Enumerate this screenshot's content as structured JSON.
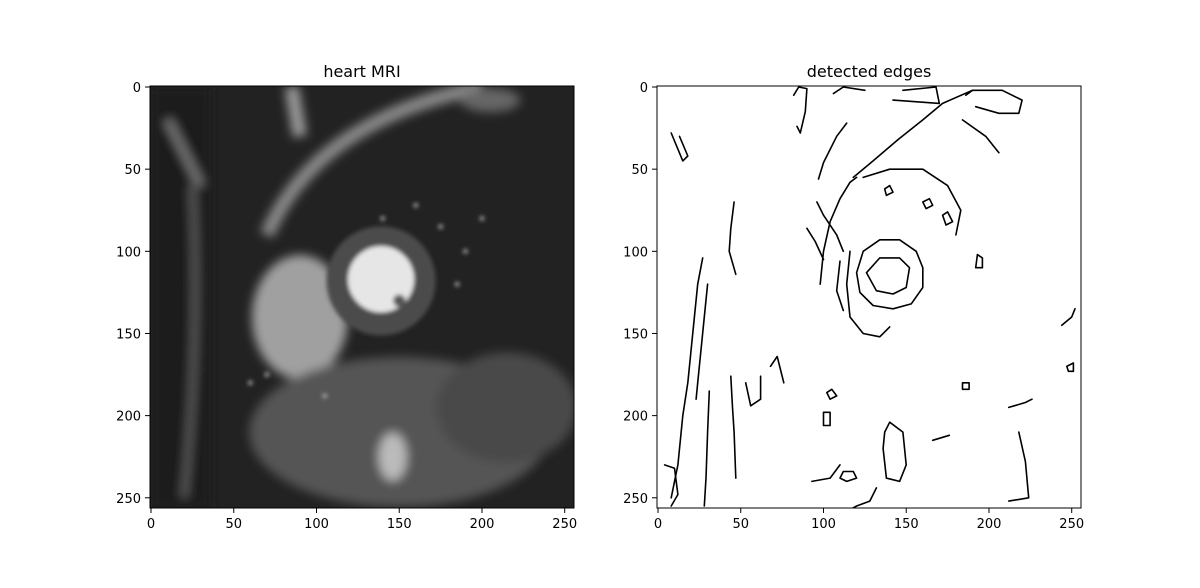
{
  "chart_data": [
    {
      "type": "image",
      "title": "heart MRI",
      "colormap": "gray",
      "width": 256,
      "height": 256,
      "xlim": [
        0,
        255
      ],
      "ylim": [
        255,
        0
      ],
      "x_ticks": [
        0,
        50,
        100,
        150,
        200,
        250
      ],
      "y_ticks": [
        0,
        50,
        100,
        150,
        200,
        250
      ],
      "x_tick_labels": [
        "0",
        "50",
        "100",
        "150",
        "200",
        "250"
      ],
      "y_tick_labels": [
        "0",
        "50",
        "100",
        "150",
        "200",
        "250"
      ],
      "features": {
        "left_ventricle_blood_pool": {
          "cx": 139,
          "cy": 117,
          "r": 20
        },
        "myocardium_ring": {
          "cx": 139,
          "cy": 118,
          "r": 33
        },
        "right_ventricle": {
          "cx": 90,
          "cy": 140
        }
      }
    },
    {
      "type": "image",
      "title": "detected edges",
      "colormap": "binary",
      "width": 256,
      "height": 256,
      "xlim": [
        0,
        255
      ],
      "ylim": [
        255,
        0
      ],
      "x_ticks": [
        0,
        50,
        100,
        150,
        200,
        250
      ],
      "y_ticks": [
        0,
        50,
        100,
        150,
        200,
        250
      ],
      "x_tick_labels": [
        "0",
        "50",
        "100",
        "150",
        "200",
        "250"
      ],
      "y_tick_labels": [
        "0",
        "50",
        "100",
        "150",
        "200",
        "250"
      ],
      "edge_contours": [
        [
          [
            82,
            5
          ],
          [
            85,
            0
          ],
          [
            90,
            1
          ],
          [
            89,
            15
          ],
          [
            86,
            28
          ],
          [
            84,
            24
          ]
        ],
        [
          [
            8,
            28
          ],
          [
            15,
            45
          ],
          [
            18,
            42
          ],
          [
            13,
            30
          ]
        ],
        [
          [
            118,
            55
          ],
          [
            130,
            45
          ],
          [
            145,
            32
          ],
          [
            160,
            20
          ],
          [
            172,
            10
          ],
          [
            190,
            2
          ]
        ],
        [
          [
            142,
            8
          ],
          [
            170,
            10
          ],
          [
            168,
            0
          ],
          [
            148,
            2
          ]
        ],
        [
          [
            186,
            5
          ],
          [
            190,
            2
          ],
          [
            208,
            2
          ],
          [
            220,
            8
          ],
          [
            218,
            16
          ],
          [
            206,
            16
          ],
          [
            192,
            12
          ]
        ],
        [
          [
            184,
            20
          ],
          [
            198,
            30
          ],
          [
            206,
            40
          ]
        ],
        [
          [
            106,
            4
          ],
          [
            112,
            0
          ],
          [
            125,
            2
          ]
        ],
        [
          [
            97,
            56
          ],
          [
            100,
            46
          ],
          [
            108,
            30
          ],
          [
            114,
            22
          ]
        ],
        [
          [
            124,
            55
          ],
          [
            140,
            50
          ],
          [
            160,
            50
          ],
          [
            175,
            60
          ],
          [
            183,
            75
          ],
          [
            180,
            90
          ]
        ],
        [
          [
            96,
            70
          ],
          [
            100,
            78
          ],
          [
            108,
            90
          ],
          [
            112,
            100
          ]
        ],
        [
          [
            120,
            55
          ],
          [
            116,
            58
          ],
          [
            110,
            68
          ],
          [
            104,
            82
          ],
          [
            100,
            100
          ],
          [
            98,
            120
          ]
        ],
        [
          [
            116,
            100
          ],
          [
            114,
            120
          ],
          [
            116,
            140
          ],
          [
            124,
            150
          ],
          [
            134,
            152
          ],
          [
            140,
            146
          ]
        ],
        [
          [
            110,
            106
          ],
          [
            108,
            124
          ],
          [
            112,
            136
          ]
        ],
        [
          [
            90,
            86
          ],
          [
            95,
            94
          ],
          [
            100,
            105
          ]
        ],
        [
          [
            120,
            113
          ],
          [
            124,
            100
          ],
          [
            134,
            93
          ],
          [
            146,
            93
          ],
          [
            156,
            100
          ],
          [
            160,
            110
          ],
          [
            160,
            122
          ],
          [
            153,
            132
          ],
          [
            142,
            135
          ],
          [
            130,
            133
          ],
          [
            122,
            125
          ],
          [
            120,
            113
          ]
        ],
        [
          [
            126,
            113
          ],
          [
            134,
            104
          ],
          [
            146,
            104
          ],
          [
            152,
            110
          ],
          [
            150,
            122
          ],
          [
            142,
            126
          ],
          [
            132,
            124
          ],
          [
            126,
            113
          ]
        ],
        [
          [
            46,
            70
          ],
          [
            44,
            86
          ],
          [
            43,
            100
          ],
          [
            47,
            114
          ]
        ],
        [
          [
            27,
            104
          ],
          [
            24,
            120
          ],
          [
            22,
            140
          ],
          [
            20,
            160
          ],
          [
            18,
            180
          ],
          [
            15,
            200
          ],
          [
            12,
            230
          ],
          [
            8,
            250
          ]
        ],
        [
          [
            30,
            120
          ],
          [
            28,
            140
          ],
          [
            26,
            160
          ],
          [
            24,
            180
          ],
          [
            23,
            190
          ]
        ],
        [
          [
            4,
            230
          ],
          [
            10,
            232
          ],
          [
            12,
            248
          ],
          [
            8,
            255
          ]
        ],
        [
          [
            44,
            176
          ],
          [
            45,
            195
          ],
          [
            46,
            210
          ],
          [
            47,
            238
          ]
        ],
        [
          [
            31,
            185
          ],
          [
            30,
            210
          ],
          [
            29,
            238
          ],
          [
            28,
            255
          ]
        ],
        [
          [
            53,
            180
          ],
          [
            56,
            194
          ],
          [
            62,
            190
          ],
          [
            62,
            176
          ]
        ],
        [
          [
            68,
            170
          ],
          [
            72,
            164
          ],
          [
            76,
            180
          ]
        ],
        [
          [
            110,
            238
          ],
          [
            112,
            234
          ],
          [
            118,
            234
          ],
          [
            120,
            238
          ],
          [
            114,
            240
          ],
          [
            110,
            238
          ]
        ],
        [
          [
            93,
            240
          ],
          [
            104,
            238
          ],
          [
            110,
            230
          ]
        ],
        [
          [
            137,
            210
          ],
          [
            140,
            204
          ],
          [
            148,
            210
          ],
          [
            150,
            230
          ],
          [
            146,
            240
          ],
          [
            138,
            238
          ],
          [
            136,
            220
          ],
          [
            137,
            210
          ]
        ],
        [
          [
            166,
            215
          ],
          [
            176,
            212
          ]
        ],
        [
          [
            212,
            195
          ],
          [
            222,
            192
          ],
          [
            226,
            190
          ]
        ],
        [
          [
            218,
            210
          ],
          [
            222,
            228
          ],
          [
            224,
            250
          ],
          [
            212,
            252
          ]
        ],
        [
          [
            244,
            145
          ],
          [
            250,
            140
          ],
          [
            252,
            135
          ]
        ],
        [
          [
            193,
            102
          ],
          [
            196,
            104
          ],
          [
            196,
            110
          ],
          [
            192,
            110
          ],
          [
            193,
            102
          ]
        ],
        [
          [
            137,
            62
          ],
          [
            140,
            60
          ],
          [
            142,
            64
          ],
          [
            138,
            66
          ],
          [
            137,
            62
          ]
        ],
        [
          [
            160,
            70
          ],
          [
            164,
            68
          ],
          [
            166,
            72
          ],
          [
            162,
            74
          ],
          [
            160,
            70
          ]
        ],
        [
          [
            172,
            78
          ],
          [
            175,
            76
          ],
          [
            178,
            82
          ],
          [
            174,
            84
          ],
          [
            172,
            78
          ]
        ],
        [
          [
            102,
            186
          ],
          [
            105,
            184
          ],
          [
            108,
            188
          ],
          [
            104,
            190
          ],
          [
            102,
            186
          ]
        ],
        [
          [
            100,
            198
          ],
          [
            104,
            198
          ],
          [
            104,
            206
          ],
          [
            100,
            206
          ],
          [
            100,
            198
          ]
        ],
        [
          [
            184,
            180
          ],
          [
            188,
            180
          ],
          [
            188,
            184
          ],
          [
            184,
            184
          ],
          [
            184,
            180
          ]
        ],
        [
          [
            247,
            170
          ],
          [
            251,
            168
          ],
          [
            251,
            173
          ],
          [
            248,
            173
          ],
          [
            247,
            170
          ]
        ],
        [
          [
            111,
            260
          ],
          [
            120,
            255
          ],
          [
            128,
            252
          ],
          [
            132,
            244
          ]
        ]
      ]
    }
  ]
}
